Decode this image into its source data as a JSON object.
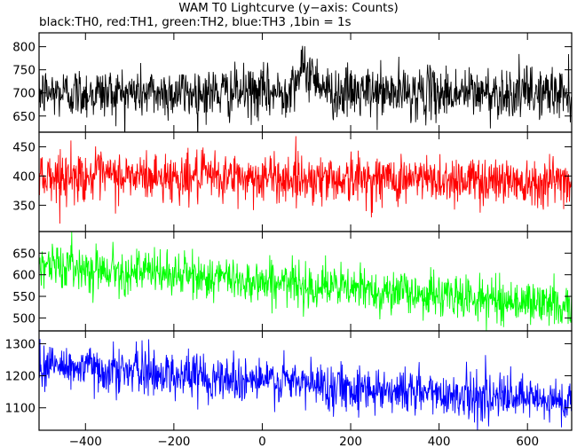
{
  "title": "WAM T0 Lightcurve (y−axis: Counts)",
  "subtitle": "black:TH0, red:TH1, green:TH2, blue:TH3 ,1bin = 1s",
  "chart_data": {
    "type": "line",
    "xlim": [
      -505,
      700
    ],
    "x_ticks": [
      -400,
      -200,
      0,
      200,
      400,
      600
    ],
    "x_tick_labels": [
      "−400",
      "−200",
      "0",
      "200",
      "400",
      "600"
    ],
    "bin_seconds": 1,
    "grid": false,
    "legend": "none",
    "panels": [
      {
        "series": "TH0",
        "color": "#000000",
        "ylim": [
          615,
          830
        ],
        "y_ticks": [
          650,
          700,
          750,
          800
        ],
        "mean_start": 700,
        "mean_end": 700,
        "noise_sd": 28,
        "features": [
          {
            "x_start": 50,
            "x_end": 150,
            "peak_excess": 45
          }
        ]
      },
      {
        "series": "TH1",
        "color": "#ff0000",
        "ylim": [
          305,
          475
        ],
        "y_ticks": [
          350,
          400,
          450
        ],
        "mean_start": 400,
        "mean_end": 392,
        "noise_sd": 21,
        "features": []
      },
      {
        "series": "TH2",
        "color": "#00ff00",
        "ylim": [
          470,
          700
        ],
        "y_ticks": [
          500,
          550,
          600,
          650
        ],
        "mean_start": 625,
        "mean_end": 528,
        "noise_sd": 25,
        "features": []
      },
      {
        "series": "TH3",
        "color": "#0000ff",
        "ylim": [
          1030,
          1340
        ],
        "y_ticks": [
          1100,
          1200,
          1300
        ],
        "mean_start": 1235,
        "mean_end": 1115,
        "noise_sd": 36,
        "features": []
      }
    ]
  }
}
